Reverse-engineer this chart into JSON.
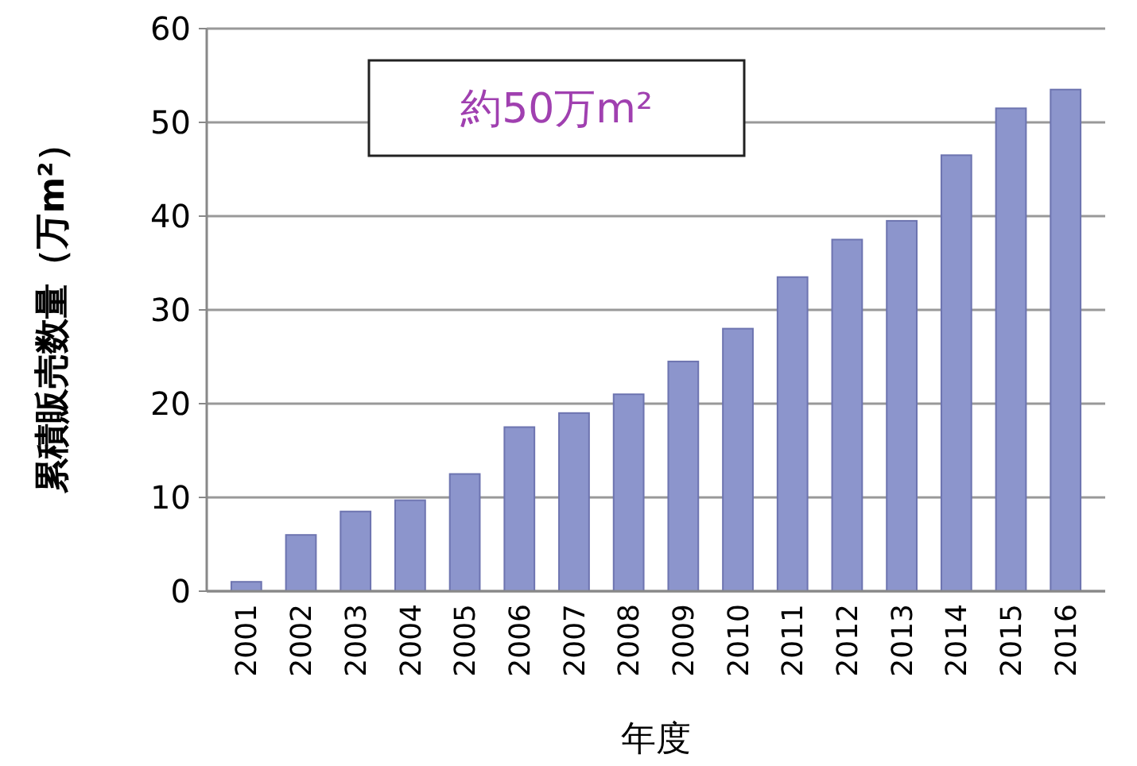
{
  "chart_data": {
    "type": "bar",
    "xlabel": "年度",
    "ylabel": "累積販売数量（万m²）",
    "categories": [
      "2001",
      "2002",
      "2003",
      "2004",
      "2005",
      "2006",
      "2007",
      "2008",
      "2009",
      "2010",
      "2011",
      "2012",
      "2013",
      "2014",
      "2015",
      "2016"
    ],
    "values": [
      1,
      6,
      8.5,
      9.7,
      12.5,
      17.5,
      19,
      21,
      24.5,
      28,
      33.5,
      37.5,
      39.5,
      46.5,
      51.5,
      53.5
    ],
    "color": "#8c95cc",
    "ylim": [
      0,
      60
    ],
    "yticks": [
      0,
      10,
      20,
      30,
      40,
      50,
      60
    ],
    "grid": "y",
    "annotations": [
      "約50万m²"
    ]
  }
}
